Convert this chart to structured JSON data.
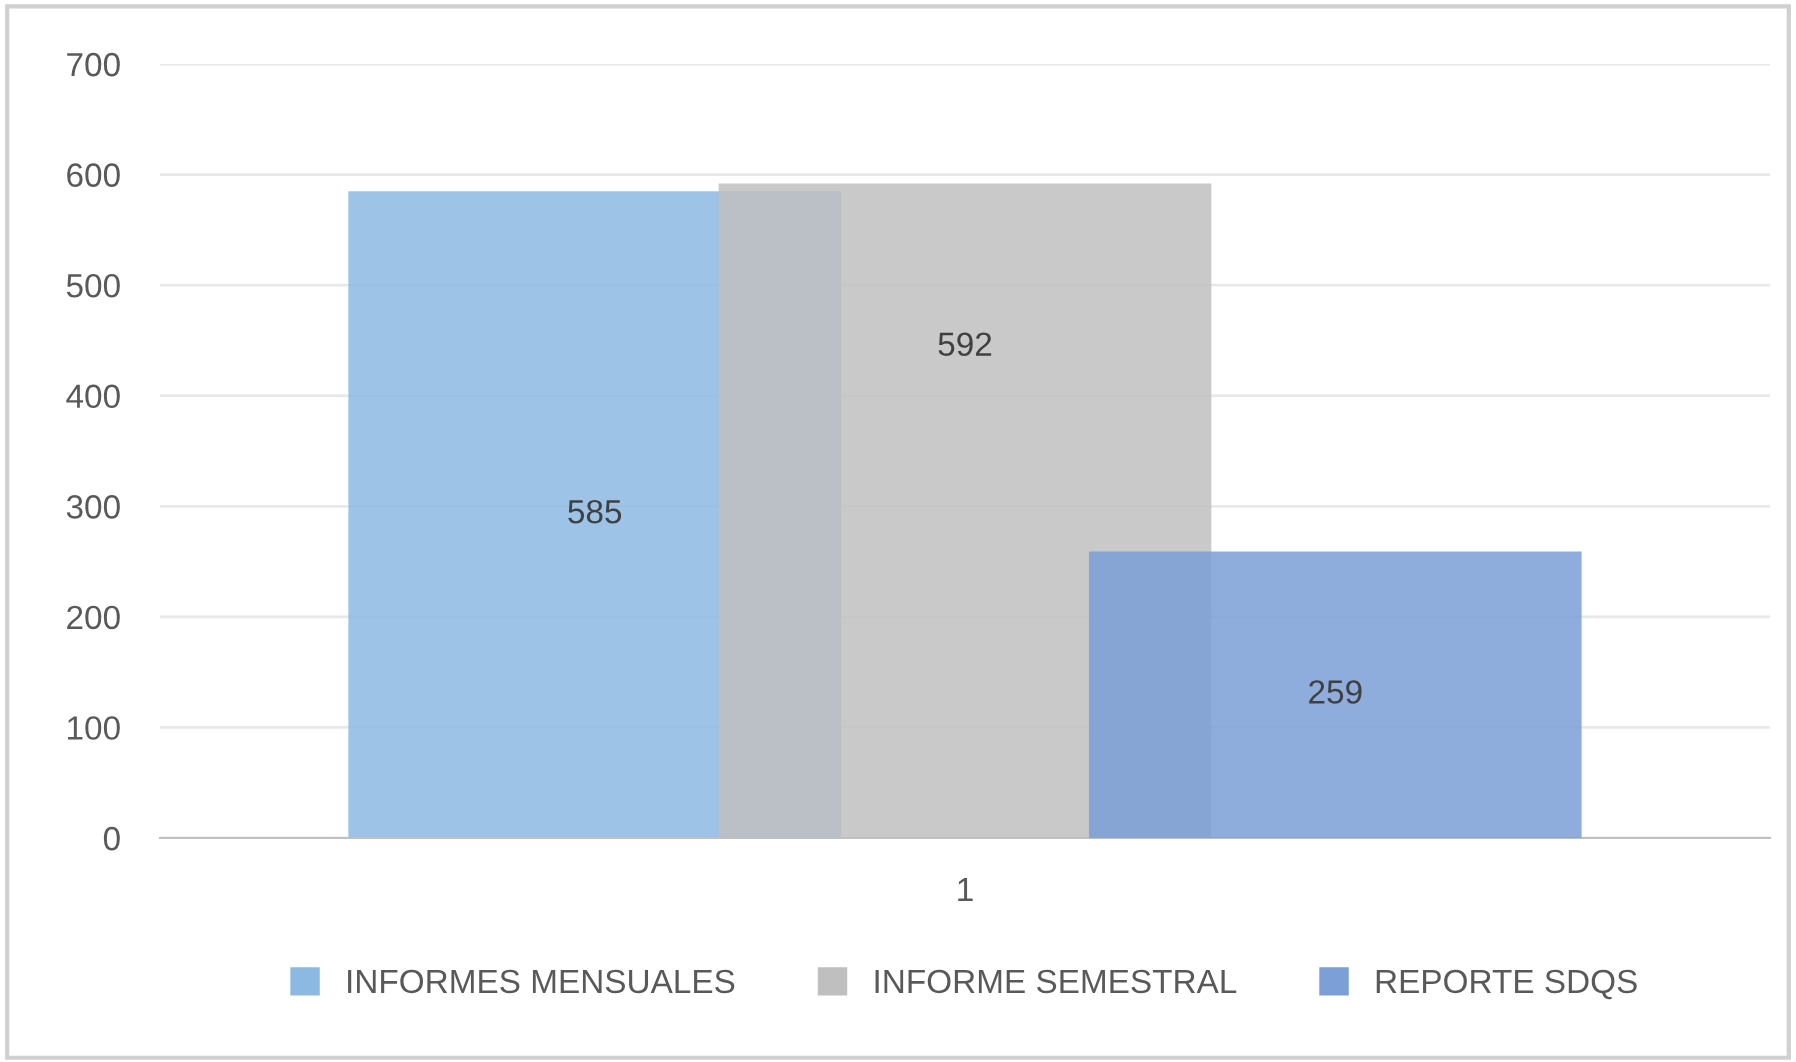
{
  "chart_data": {
    "type": "bar",
    "categories": [
      "1"
    ],
    "series": [
      {
        "name": "INFORMES MENSUALES",
        "color": "#8cb9e2",
        "values": [
          585
        ]
      },
      {
        "name": "INFORME SEMESTRAL",
        "color": "#bfbfbf",
        "values": [
          592
        ]
      },
      {
        "name": "REPORTE SDQS",
        "color": "#7b9fd6",
        "values": [
          259
        ]
      }
    ],
    "ylim": [
      0,
      700
    ],
    "yticks": [
      0,
      100,
      200,
      300,
      400,
      500,
      600,
      700
    ],
    "grid": "y",
    "legend": "bottom",
    "data_labels": true
  }
}
